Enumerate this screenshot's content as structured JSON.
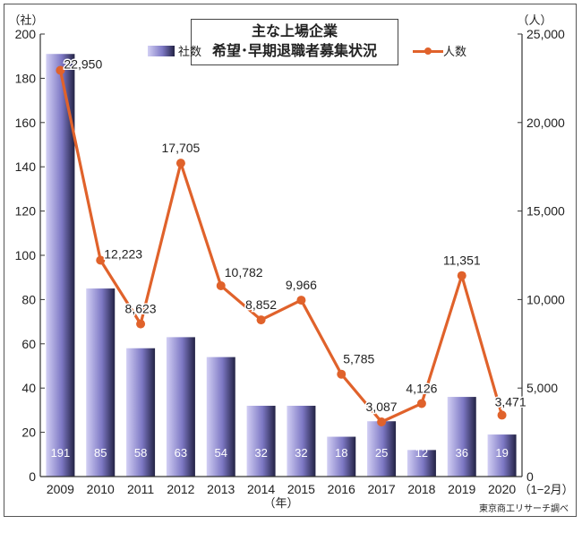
{
  "title": {
    "line1": "主な上場企業",
    "line2": "希望･早期退職者募集状況"
  },
  "legend": {
    "bar_label": "社数",
    "line_label": "人数"
  },
  "axes": {
    "left_unit": "（社）",
    "right_unit": "（人）",
    "x_unit": "（年）"
  },
  "source": "東京商工リサーチ調べ",
  "colors": {
    "line": "#e0622b",
    "bar_light": "#d2cff4",
    "bar_mid": "#7d78c4",
    "bar_dark": "#222244"
  },
  "chart_data": {
    "type": "bar",
    "categories": [
      "2009",
      "2010",
      "2011",
      "2012",
      "2013",
      "2014",
      "2015",
      "2016",
      "2017",
      "2018",
      "2019",
      "2020"
    ],
    "category_suffix_last": "（1−2月）",
    "series": [
      {
        "name": "社数",
        "type": "bar",
        "axis": "left",
        "values": [
          191,
          85,
          58,
          63,
          54,
          32,
          32,
          18,
          25,
          12,
          36,
          19
        ],
        "labels": [
          "191",
          "85",
          "58",
          "63",
          "54",
          "32",
          "32",
          "18",
          "25",
          "12",
          "36",
          "19"
        ]
      },
      {
        "name": "人数",
        "type": "line",
        "axis": "right",
        "values": [
          22950,
          12223,
          8623,
          17705,
          10782,
          8852,
          9966,
          5785,
          3087,
          4126,
          11351,
          3471
        ],
        "labels": [
          "22,950",
          "12,223",
          "8,623",
          "17,705",
          "10,782",
          "8,852",
          "9,966",
          "5,785",
          "3,087",
          "4,126",
          "11,351",
          "3,471"
        ]
      }
    ],
    "left_axis": {
      "min": 0,
      "max": 200,
      "ticks": [
        "0",
        "20",
        "40",
        "60",
        "80",
        "100",
        "120",
        "140",
        "160",
        "180",
        "200"
      ]
    },
    "right_axis": {
      "min": 0,
      "max": 25000,
      "ticks": [
        "0",
        "5,000",
        "10,000",
        "15,000",
        "20,000",
        "25,000"
      ]
    },
    "grid": false,
    "legend_position": "top"
  }
}
